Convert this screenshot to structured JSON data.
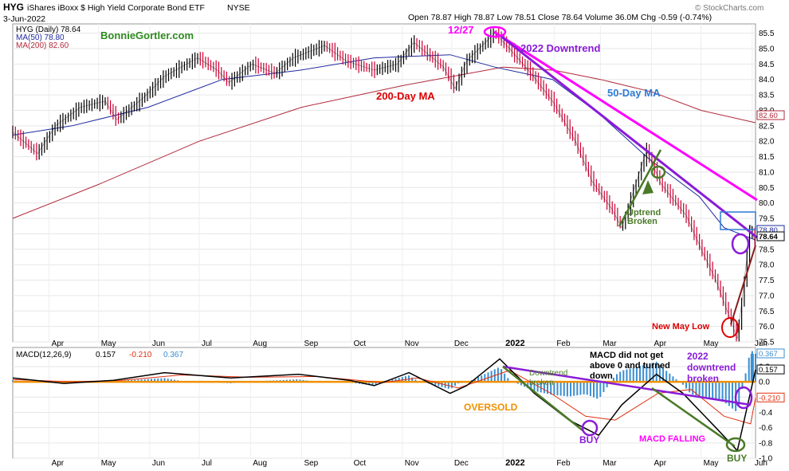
{
  "header": {
    "symbol": "HYG",
    "name": "iShares iBoxx $ High Yield Corporate Bond ETF",
    "exchange": "NYSE",
    "date": "3-Jun-2022",
    "ohlc_label": "Open 78.87  High 78.87  Low 78.51  Close 78.64  Volume 36.0M  Chg -0.59 (-0.74%)",
    "watermark": "© StockCharts.com",
    "author": "BonnieGortler.com"
  },
  "price_legend": {
    "main": "HYG (Daily) 78.64",
    "ma50": "MA(50) 78.80",
    "ma200": "MA(200) 82.60"
  },
  "macd_legend": {
    "label": "MACD(12,26,9)",
    "macd": "0.157",
    "signal": "-0.210",
    "hist": "0.367"
  },
  "colors": {
    "price_up": "#000000",
    "price_down": "#cc0033",
    "ma50": "#1f2a9e",
    "ma200": "#b0283a",
    "magenta": "#ff00ff",
    "purple": "#8a1bd8",
    "green": "#4a7a28",
    "red": "#dd0000",
    "orange": "#f09000",
    "blue_text": "#2f7ad3",
    "macd_line": "#000000",
    "signal_line": "#e03010",
    "hist": "#3a8ed0"
  },
  "annotations": {
    "downtrend_2022": "2022 Downtrend",
    "d1227": "12/27",
    "ma200": "200-Day MA",
    "ma50": "50-Day MA",
    "uptrend_broken": [
      "Uptrend",
      "Broken"
    ],
    "new_may_low": "New May Low",
    "macd_no_zero": [
      "MACD did not get",
      "above 0 and turned",
      "down"
    ],
    "downtrend_broken_2022": [
      "2022",
      "downtrend",
      "broken"
    ],
    "downtrend_broken_small": [
      "Downtrend",
      "broken"
    ],
    "oversold": "OVERSOLD",
    "buy": "BUY",
    "macd_falling": "MACD FALLING"
  },
  "chart_data": [
    {
      "type": "line",
      "title": "HYG (Daily)",
      "series_names": [
        "HYG",
        "MA(50)",
        "MA(200)"
      ],
      "ylim": [
        75.5,
        85.8
      ],
      "y_ticks": [
        75.5,
        76.0,
        76.5,
        77.0,
        77.5,
        78.0,
        78.5,
        79.0,
        79.5,
        80.0,
        80.5,
        81.0,
        81.5,
        82.0,
        82.5,
        83.0,
        83.5,
        84.0,
        84.5,
        85.0,
        85.5
      ],
      "x_ticks": [
        "Apr",
        "May",
        "Jun",
        "Jul",
        "Aug",
        "Sep",
        "Oct",
        "Nov",
        "Dec",
        "2022",
        "Feb",
        "Mar",
        "Apr",
        "May",
        "Jun"
      ],
      "x_range": [
        "2021-03-10",
        "2022-06-03"
      ],
      "price_points": [
        [
          "2021-03-10",
          82.3
        ],
        [
          "2021-03-25",
          81.6
        ],
        [
          "2021-04-05",
          82.5
        ],
        [
          "2021-04-20",
          83.1
        ],
        [
          "2021-05-05",
          83.3
        ],
        [
          "2021-05-12",
          82.7
        ],
        [
          "2021-05-28",
          83.4
        ],
        [
          "2021-06-10",
          84.1
        ],
        [
          "2021-06-30",
          84.7
        ],
        [
          "2021-07-12",
          84.3
        ],
        [
          "2021-07-19",
          83.9
        ],
        [
          "2021-08-02",
          84.5
        ],
        [
          "2021-08-16",
          84.2
        ],
        [
          "2021-08-27",
          84.7
        ],
        [
          "2021-09-15",
          85.1
        ],
        [
          "2021-09-28",
          84.6
        ],
        [
          "2021-10-15",
          84.3
        ],
        [
          "2021-10-29",
          84.5
        ],
        [
          "2021-11-08",
          85.2
        ],
        [
          "2021-11-26",
          84.4
        ],
        [
          "2021-12-03",
          83.7
        ],
        [
          "2021-12-10",
          84.6
        ],
        [
          "2021-12-27",
          85.5
        ],
        [
          "2022-01-05",
          85.0
        ],
        [
          "2022-01-18",
          84.2
        ],
        [
          "2022-01-31",
          83.3
        ],
        [
          "2022-02-14",
          82.0
        ],
        [
          "2022-02-24",
          80.7
        ],
        [
          "2022-03-08",
          79.8
        ],
        [
          "2022-03-14",
          79.2
        ],
        [
          "2022-03-29",
          81.7
        ],
        [
          "2022-04-07",
          80.6
        ],
        [
          "2022-04-22",
          79.6
        ],
        [
          "2022-05-02",
          78.4
        ],
        [
          "2022-05-10",
          77.5
        ],
        [
          "2022-05-19",
          76.2
        ],
        [
          "2022-05-23",
          75.6
        ],
        [
          "2022-05-27",
          77.4
        ],
        [
          "2022-05-31",
          79.3
        ],
        [
          "2022-06-03",
          78.64
        ]
      ],
      "ma50_points": [
        [
          "2021-03-10",
          82.2
        ],
        [
          "2021-04-15",
          82.5
        ],
        [
          "2021-05-31",
          83.1
        ],
        [
          "2021-07-15",
          84.0
        ],
        [
          "2021-08-31",
          84.3
        ],
        [
          "2021-10-15",
          84.7
        ],
        [
          "2021-11-30",
          84.8
        ],
        [
          "2021-12-27",
          84.4
        ],
        [
          "2022-01-31",
          84.0
        ],
        [
          "2022-02-28",
          82.9
        ],
        [
          "2022-03-31",
          81.4
        ],
        [
          "2022-04-30",
          80.2
        ],
        [
          "2022-05-15",
          79.2
        ],
        [
          "2022-06-03",
          78.8
        ]
      ],
      "ma200_points": [
        [
          "2021-03-10",
          79.5
        ],
        [
          "2021-05-01",
          80.6
        ],
        [
          "2021-07-01",
          82.0
        ],
        [
          "2021-09-01",
          83.1
        ],
        [
          "2021-11-01",
          83.8
        ],
        [
          "2022-01-01",
          84.4
        ],
        [
          "2022-02-01",
          84.3
        ],
        [
          "2022-03-01",
          84.0
        ],
        [
          "2022-04-01",
          83.6
        ],
        [
          "2022-05-01",
          83.0
        ],
        [
          "2022-06-03",
          82.6
        ]
      ]
    },
    {
      "type": "line",
      "title": "MACD(12,26,9)",
      "series_names": [
        "MACD",
        "Signal",
        "Histogram"
      ],
      "ylim": [
        -1.0,
        0.45
      ],
      "y_ticks": [
        -1.0,
        -0.8,
        -0.6,
        -0.4,
        -0.2,
        0.0,
        0.2
      ],
      "macd_points": [
        [
          "2021-03-10",
          0.05
        ],
        [
          "2021-04-10",
          -0.02
        ],
        [
          "2021-05-10",
          0.02
        ],
        [
          "2021-06-10",
          0.12
        ],
        [
          "2021-07-20",
          0.05
        ],
        [
          "2021-08-30",
          0.1
        ],
        [
          "2021-09-30",
          0.02
        ],
        [
          "2021-10-15",
          -0.05
        ],
        [
          "2021-11-05",
          0.12
        ],
        [
          "2021-11-30",
          -0.15
        ],
        [
          "2021-12-10",
          -0.05
        ],
        [
          "2021-12-30",
          0.3
        ],
        [
          "2022-01-20",
          -0.15
        ],
        [
          "2022-02-10",
          -0.5
        ],
        [
          "2022-02-28",
          -0.7
        ],
        [
          "2022-03-14",
          -0.3
        ],
        [
          "2022-04-04",
          0.1
        ],
        [
          "2022-04-20",
          -0.15
        ],
        [
          "2022-05-10",
          -0.6
        ],
        [
          "2022-05-23",
          -0.9
        ],
        [
          "2022-06-03",
          0.157
        ]
      ],
      "signal_points": [
        [
          "2021-03-10",
          0.03
        ],
        [
          "2021-04-15",
          0.0
        ],
        [
          "2021-05-15",
          0.02
        ],
        [
          "2021-06-20",
          0.09
        ],
        [
          "2021-08-01",
          0.06
        ],
        [
          "2021-09-10",
          0.07
        ],
        [
          "2021-10-20",
          -0.01
        ],
        [
          "2021-11-10",
          0.05
        ],
        [
          "2021-12-05",
          -0.08
        ],
        [
          "2022-01-05",
          0.15
        ],
        [
          "2022-01-30",
          -0.15
        ],
        [
          "2022-02-20",
          -0.45
        ],
        [
          "2022-03-10",
          -0.5
        ],
        [
          "2022-04-05",
          -0.15
        ],
        [
          "2022-04-25",
          -0.1
        ],
        [
          "2022-05-15",
          -0.45
        ],
        [
          "2022-05-31",
          -0.55
        ],
        [
          "2022-06-03",
          -0.21
        ]
      ],
      "histogram_value": 0.367
    }
  ]
}
